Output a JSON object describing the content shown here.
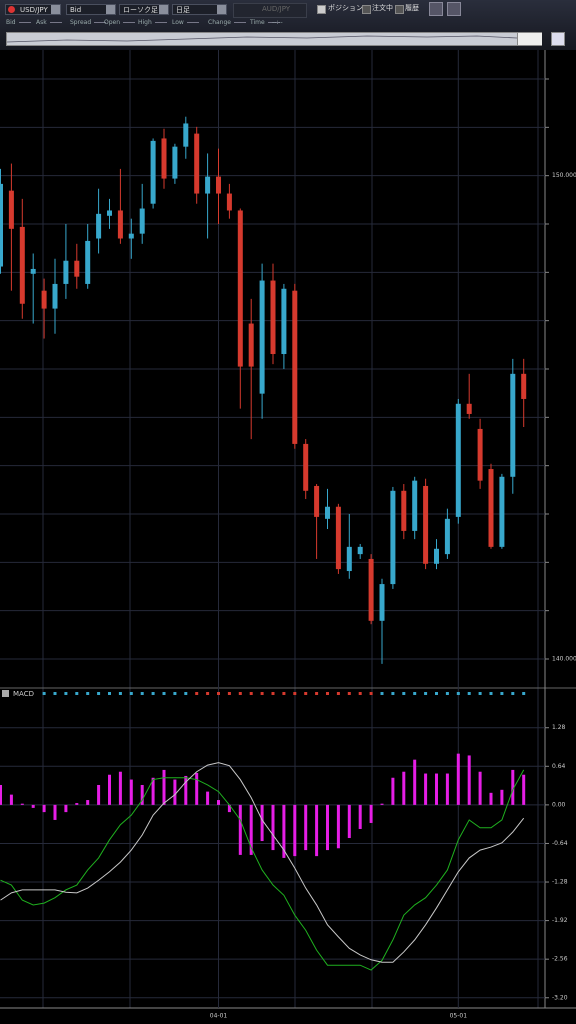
{
  "toolbar": {
    "symbol": "USD/JPY",
    "price_type": "Bid",
    "chart_type": "ローソク足",
    "period": "日足",
    "compare_symbol": "AUD/JPY",
    "toggles": [
      "ポジション",
      "注文中",
      "履歴"
    ]
  },
  "quote_fields": [
    "Bid",
    "Ask",
    "Spread",
    "Open",
    "High",
    "Low",
    "Change",
    "Time"
  ],
  "time_value": "--:--",
  "chart_data": [
    {
      "type": "candlestick",
      "categories": [
        null,
        null,
        null,
        null,
        null,
        null,
        null,
        null,
        null,
        null,
        null,
        null,
        null,
        null,
        null,
        null,
        null,
        null,
        null,
        null,
        "04-01",
        null,
        null,
        null,
        null,
        null,
        null,
        null,
        null,
        null,
        null,
        null,
        null,
        null,
        null,
        null,
        null,
        null,
        null,
        null,
        null,
        null,
        "05-01",
        null,
        null,
        null,
        null,
        null,
        null
      ],
      "open": [
        148.12,
        149.69,
        148.94,
        147.97,
        147.62,
        147.25,
        147.76,
        148.24,
        147.76,
        148.7,
        149.17,
        149.28,
        148.7,
        148.8,
        149.42,
        150.77,
        149.94,
        150.6,
        150.87,
        149.63,
        149.98,
        149.63,
        149.28,
        146.94,
        145.49,
        147.83,
        146.31,
        147.62,
        144.45,
        143.58,
        142.9,
        143.15,
        141.82,
        142.17,
        142.07,
        140.79,
        141.55,
        143.48,
        142.65,
        143.58,
        141.97,
        142.17,
        142.94,
        145.28,
        144.76,
        143.93,
        142.32,
        143.77,
        145.9
      ],
      "high": [
        150.14,
        150.25,
        149.52,
        148.39,
        147.87,
        148.28,
        149.0,
        148.59,
        149.0,
        149.73,
        149.52,
        150.14,
        149.11,
        149.83,
        150.77,
        150.97,
        150.66,
        151.22,
        151.01,
        150.46,
        150.56,
        149.83,
        149.32,
        147.45,
        148.18,
        148.18,
        147.76,
        147.76,
        144.55,
        143.62,
        143.52,
        143.21,
        143.0,
        142.38,
        142.17,
        141.66,
        143.56,
        143.62,
        143.77,
        143.73,
        142.48,
        143.11,
        145.38,
        145.9,
        144.97,
        144.04,
        143.83,
        146.21,
        146.21
      ],
      "low": [
        147.97,
        147.62,
        147.04,
        146.94,
        146.63,
        146.73,
        147.45,
        147.66,
        147.66,
        148.39,
        148.9,
        148.59,
        148.28,
        148.59,
        149.32,
        149.73,
        149.83,
        150.35,
        149.42,
        148.7,
        149.0,
        149.11,
        145.18,
        144.55,
        144.97,
        146.1,
        146.0,
        144.35,
        143.31,
        142.07,
        142.69,
        141.76,
        141.66,
        142.07,
        140.72,
        139.9,
        141.45,
        142.48,
        142.48,
        141.86,
        141.86,
        142.07,
        142.8,
        144.97,
        143.52,
        142.28,
        142.28,
        143.42,
        144.8
      ],
      "close": [
        149.83,
        148.9,
        147.35,
        148.07,
        147.25,
        147.76,
        148.24,
        147.91,
        148.65,
        149.21,
        149.28,
        148.7,
        148.8,
        149.32,
        150.72,
        149.94,
        150.6,
        151.08,
        149.63,
        149.98,
        149.63,
        149.28,
        146.05,
        146.05,
        147.83,
        146.31,
        147.66,
        144.45,
        143.48,
        142.94,
        143.15,
        141.86,
        142.32,
        142.32,
        140.79,
        141.55,
        143.48,
        142.65,
        143.69,
        141.97,
        142.28,
        142.9,
        145.28,
        145.07,
        143.69,
        142.32,
        143.77,
        145.9,
        145.38
      ],
      "up_color": "#38a8cc",
      "down_color": "#d63a2e",
      "ylim": [
        139.4,
        152.6
      ],
      "yticks": [
        {
          "value": 140,
          "label": "140.000"
        },
        {
          "value": 150,
          "label": "150.000"
        }
      ],
      "minor_yticks": [
        141,
        142,
        143,
        144,
        145,
        146,
        147,
        148,
        149,
        151,
        152
      ],
      "grid": true
    },
    {
      "type": "macd",
      "title": "MACD",
      "series": [
        {
          "style": "bar",
          "color": "#e61ee6",
          "values": [
            0.33,
            0.17,
            0.02,
            -0.05,
            -0.12,
            -0.25,
            -0.12,
            0.03,
            0.08,
            0.33,
            0.5,
            0.55,
            0.42,
            0.33,
            0.45,
            0.58,
            0.42,
            0.48,
            0.53,
            0.22,
            0.08,
            -0.12,
            -0.83,
            -0.83,
            -0.6,
            -0.75,
            -0.88,
            -0.85,
            -0.75,
            -0.85,
            -0.75,
            -0.72,
            -0.55,
            -0.4,
            -0.3,
            0.02,
            0.45,
            0.55,
            0.75,
            0.52,
            0.52,
            0.52,
            0.85,
            0.82,
            0.55,
            0.2,
            0.25,
            0.58,
            0.5
          ]
        },
        {
          "style": "line",
          "color": "#1fb01f",
          "values": [
            -1.25,
            -1.33,
            -1.58,
            -1.66,
            -1.63,
            -1.54,
            -1.41,
            -1.33,
            -1.08,
            -0.88,
            -0.58,
            -0.33,
            -0.17,
            0.08,
            0.42,
            0.45,
            0.45,
            0.45,
            0.42,
            0.33,
            0.22,
            0,
            -0.25,
            -0.71,
            -1.08,
            -1.33,
            -1.5,
            -1.83,
            -2.08,
            -2.41,
            -2.66,
            -2.66,
            -2.66,
            -2.66,
            -2.74,
            -2.58,
            -2.24,
            -1.83,
            -1.66,
            -1.54,
            -1.33,
            -1.08,
            -0.58,
            -0.25,
            -0.38,
            -0.38,
            -0.25,
            0.25,
            0.58
          ]
        },
        {
          "style": "line",
          "color": "#c8c8c8",
          "values": [
            -1.58,
            -1.46,
            -1.41,
            -1.41,
            -1.41,
            -1.41,
            -1.45,
            -1.46,
            -1.38,
            -1.25,
            -1.11,
            -0.95,
            -0.75,
            -0.5,
            -0.17,
            0.03,
            0.17,
            0.38,
            0.55,
            0.66,
            0.7,
            0.65,
            0.42,
            0.12,
            -0.25,
            -0.5,
            -0.75,
            -1.05,
            -1.38,
            -1.66,
            -1.99,
            -2.19,
            -2.38,
            -2.49,
            -2.57,
            -2.61,
            -2.61,
            -2.44,
            -2.24,
            -1.99,
            -1.71,
            -1.41,
            -1.11,
            -0.88,
            -0.75,
            -0.7,
            -0.63,
            -0.45,
            -0.22
          ]
        }
      ],
      "ylim": [
        -3.37,
        1.74
      ],
      "yticks": [
        1.28,
        0.64,
        {
          "value": 0,
          "label": "0.00"
        },
        -0.64,
        -1.28,
        -1.92,
        -2.56,
        {
          "value": -3.2,
          "label": "-3.20"
        }
      ],
      "grid": true
    }
  ]
}
